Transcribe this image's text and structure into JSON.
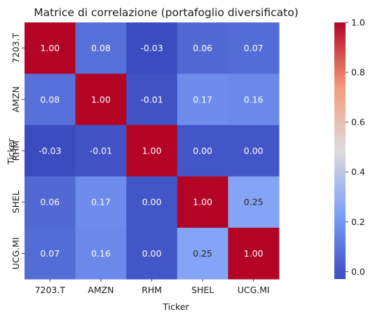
{
  "chart_data": {
    "type": "heatmap",
    "title": "Matrice di correlazione (portafoglio diversificato)",
    "xlabel": "Ticker",
    "ylabel": "Ticker",
    "x_categories": [
      "7203.T",
      "AMZN",
      "RHM",
      "SHEL",
      "UCG.MI"
    ],
    "y_categories": [
      "7203.T",
      "AMZN",
      "RHM",
      "SHEL",
      "UCG.MI"
    ],
    "values": [
      [
        1.0,
        0.08,
        -0.03,
        0.06,
        0.07
      ],
      [
        0.08,
        1.0,
        -0.01,
        0.17,
        0.16
      ],
      [
        -0.03,
        -0.01,
        1.0,
        0.0,
        0.0
      ],
      [
        0.06,
        0.17,
        0.0,
        1.0,
        0.25
      ],
      [
        0.07,
        0.16,
        0.0,
        0.25,
        1.0
      ]
    ],
    "annotations_format": "0.00",
    "colormap": "coolwarm",
    "vmin": -0.03,
    "vmax": 1.0,
    "colorbar": {
      "ticks": [
        0.0,
        0.2,
        0.4,
        0.6,
        0.8,
        1.0
      ],
      "tick_labels": [
        "0.0",
        "0.2",
        "0.4",
        "0.6",
        "0.8",
        "1.0"
      ],
      "placement": "right"
    },
    "grid": false
  }
}
